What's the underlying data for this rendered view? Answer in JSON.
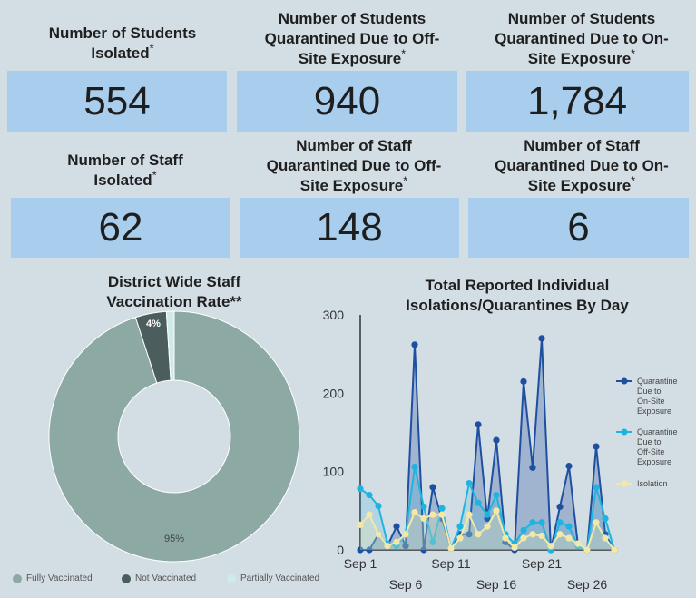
{
  "cards": [
    {
      "title": "Number of Students Isolated",
      "mark": "*",
      "value": "554"
    },
    {
      "title": "Number of Students Quarantined Due to Off-Site Exposure",
      "mark": "*",
      "value": "940"
    },
    {
      "title": "Number of Students Quarantined Due to On-Site Exposure",
      "mark": "*",
      "value": "1,784"
    },
    {
      "title": "Number of Staff Isolated",
      "mark": "*",
      "value": "62"
    },
    {
      "title": "Number of Staff Quarantined Due to Off-Site Exposure",
      "mark": "*",
      "value": "148"
    },
    {
      "title": "Number of Staff Quarantined Due to On-Site Exposure",
      "mark": "*",
      "value": "6"
    }
  ],
  "chart_data": [
    {
      "type": "pie",
      "title": "District Wide Staff Vaccination Rate**",
      "donut": true,
      "slices": [
        {
          "label": "Fully Vaccinated",
          "value": 95,
          "display": "95%",
          "color": "#8ca9a4"
        },
        {
          "label": "Not Vaccinated",
          "value": 4,
          "display": "4%",
          "color": "#4b5d5d"
        },
        {
          "label": "Partially Vaccinated",
          "value": 1,
          "display": "",
          "color": "#cfeaea"
        }
      ],
      "legend": "bottom"
    },
    {
      "type": "line",
      "title": "Total Reported Individual Isolations/Quarantines By Day",
      "x_ticks": [
        "Sep 1",
        "Sep 6",
        "Sep 11",
        "Sep 16",
        "Sep 21",
        "Sep 26"
      ],
      "y_ticks": [
        "0",
        "100",
        "200",
        "300"
      ],
      "ylim": [
        0,
        300
      ],
      "xlim": [
        1,
        29
      ],
      "grid": false,
      "legend": "right",
      "x": [
        1,
        2,
        3,
        4,
        5,
        6,
        7,
        8,
        9,
        10,
        11,
        12,
        13,
        14,
        15,
        16,
        17,
        18,
        19,
        20,
        21,
        22,
        23,
        24,
        25,
        26,
        27,
        28,
        29
      ],
      "series": [
        {
          "name": "Quarantine Due to On-Site Exposure",
          "color": "#1f4fa0",
          "fill": "rgba(47,85,160,0.30)",
          "values": [
            0,
            0,
            20,
            5,
            30,
            5,
            262,
            0,
            80,
            40,
            2,
            20,
            20,
            160,
            40,
            140,
            10,
            0,
            215,
            105,
            270,
            0,
            55,
            107,
            5,
            0,
            132,
            20,
            0
          ]
        },
        {
          "name": "Quarantine Due to Off-Site Exposure",
          "color": "#1fb4e0",
          "fill": "rgba(31,180,224,0.18)",
          "values": [
            78,
            70,
            56,
            8,
            5,
            20,
            106,
            55,
            10,
            53,
            2,
            30,
            85,
            60,
            45,
            70,
            20,
            8,
            25,
            35,
            35,
            0,
            35,
            30,
            5,
            0,
            80,
            40,
            0
          ]
        },
        {
          "name": "Isolation",
          "color": "#f4e8a6",
          "fill": "rgba(244,232,166,0.25)",
          "values": [
            32,
            45,
            20,
            5,
            10,
            20,
            48,
            40,
            45,
            45,
            2,
            15,
            45,
            20,
            30,
            50,
            15,
            3,
            15,
            20,
            18,
            5,
            20,
            15,
            8,
            0,
            35,
            15,
            0
          ]
        }
      ]
    }
  ]
}
